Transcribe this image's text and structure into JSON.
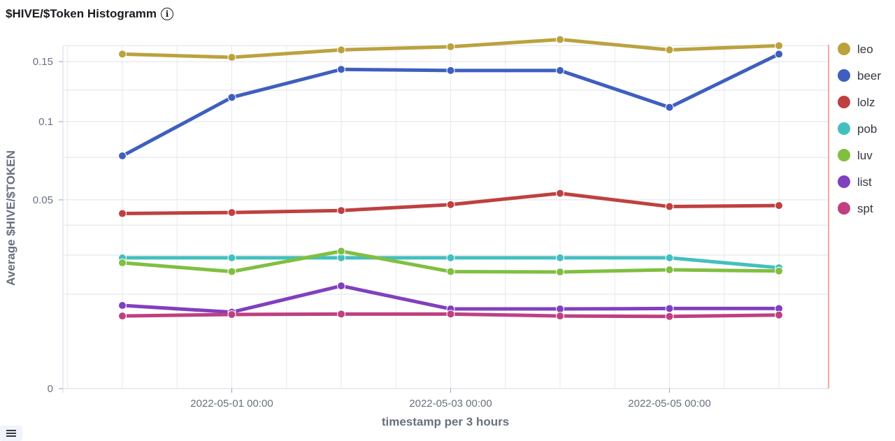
{
  "panel": {
    "title": "$HIVE/$Token Histogramm",
    "info_icon": "info-circle-icon",
    "legend_toggle_icon": "list-icon"
  },
  "chart_data": {
    "type": "line",
    "title": "$HIVE/$Token Histogramm",
    "xlabel": "timestamp per 3 hours",
    "ylabel": "Average $HIVE/$TOKEN",
    "y_scale": "sqrt",
    "ylim": [
      0,
      0.17
    ],
    "y_ticks": [
      0,
      0.05,
      0.1,
      0.15
    ],
    "y_tick_labels": [
      "0",
      "0.05",
      "0.1",
      "0.15"
    ],
    "x_tick_labels": [
      "2022-05-01 00:00",
      "2022-05-03 00:00",
      "2022-05-05 00:00"
    ],
    "x": [
      "2022-04-30 00:00",
      "2022-05-01 00:00",
      "2022-05-02 00:00",
      "2022-05-03 00:00",
      "2022-05-04 00:00",
      "2022-05-05 00:00",
      "2022-05-06 00:00"
    ],
    "grid": true,
    "legend_position": "right",
    "series": [
      {
        "name": "leo",
        "color": "#bba23e",
        "values": [
          0.157,
          0.154,
          0.161,
          0.164,
          0.171,
          0.161,
          0.165
        ]
      },
      {
        "name": "beer",
        "color": "#3f5fbf",
        "values": [
          0.076,
          0.119,
          0.143,
          0.142,
          0.142,
          0.111,
          0.157
        ]
      },
      {
        "name": "lolz",
        "color": "#bf4040",
        "values": [
          0.043,
          0.0435,
          0.0445,
          0.0475,
          0.0535,
          0.0465,
          0.047
        ]
      },
      {
        "name": "pob",
        "color": "#44bfbf",
        "values": [
          0.024,
          0.024,
          0.024,
          0.024,
          0.024,
          0.024,
          0.0205
        ]
      },
      {
        "name": "luv",
        "color": "#80bf40",
        "values": [
          0.0222,
          0.0192,
          0.0265,
          0.0192,
          0.0191,
          0.0198,
          0.0194
        ]
      },
      {
        "name": "list",
        "color": "#8040bf",
        "values": [
          0.0097,
          0.0082,
          0.0148,
          0.0089,
          0.0089,
          0.009,
          0.009
        ]
      },
      {
        "name": "spt",
        "color": "#bf4080",
        "values": [
          0.0074,
          0.0077,
          0.0078,
          0.0078,
          0.0074,
          0.0073,
          0.0076
        ]
      }
    ]
  }
}
